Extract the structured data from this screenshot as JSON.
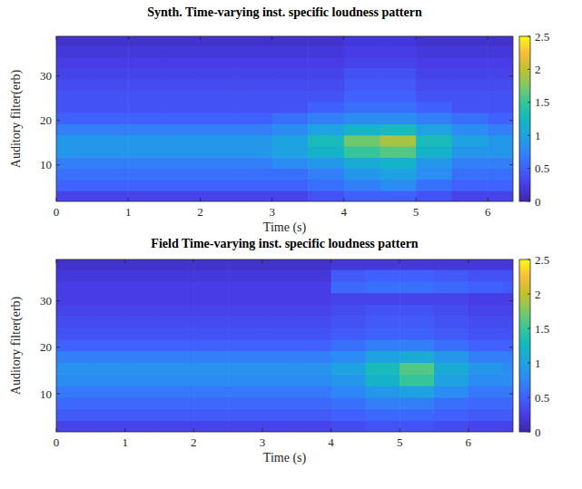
{
  "chart_data": [
    {
      "type": "heatmap",
      "title": "Synth. Time-varying inst. specific loudness pattern",
      "x_label": "Time (s)",
      "y_label": "Auditory filter(erb)",
      "xlim": [
        0,
        6.35
      ],
      "xticks": [
        0,
        1,
        2,
        3,
        4,
        5,
        6
      ],
      "ylim": [
        1.8,
        38.9
      ],
      "yticks": [
        10,
        20,
        30
      ],
      "x": [
        0.25,
        0.75,
        1.25,
        1.75,
        2.25,
        2.75,
        3.25,
        3.75,
        4.25,
        4.75,
        5.25,
        5.75,
        6.25
      ],
      "y": [
        3,
        5.5,
        8,
        10.5,
        13,
        15.5,
        18,
        20.5,
        23,
        25.5,
        28,
        30.5,
        33,
        35.5,
        38
      ],
      "values": [
        [
          0.3,
          0.3,
          0.3,
          0.3,
          0.3,
          0.3,
          0.3,
          0.4,
          0.5,
          0.5,
          0.4,
          0.3,
          0.3
        ],
        [
          0.5,
          0.5,
          0.5,
          0.5,
          0.5,
          0.5,
          0.5,
          0.6,
          0.7,
          0.8,
          0.6,
          0.5,
          0.5
        ],
        [
          0.6,
          0.6,
          0.6,
          0.6,
          0.6,
          0.6,
          0.6,
          0.7,
          0.9,
          1.0,
          0.8,
          0.6,
          0.6
        ],
        [
          0.7,
          0.7,
          0.7,
          0.7,
          0.7,
          0.7,
          0.8,
          0.9,
          1.1,
          1.2,
          0.9,
          0.7,
          0.7
        ],
        [
          0.9,
          0.9,
          0.9,
          0.9,
          0.9,
          0.9,
          1.0,
          1.2,
          1.5,
          1.6,
          1.2,
          0.9,
          0.9
        ],
        [
          0.9,
          0.9,
          0.9,
          0.9,
          0.9,
          0.9,
          1.0,
          1.3,
          1.7,
          1.9,
          1.3,
          1.0,
          0.9
        ],
        [
          0.7,
          0.7,
          0.7,
          0.7,
          0.7,
          0.7,
          0.8,
          1.0,
          1.2,
          1.3,
          1.0,
          0.8,
          0.7
        ],
        [
          0.5,
          0.5,
          0.5,
          0.5,
          0.5,
          0.5,
          0.6,
          0.7,
          0.8,
          0.8,
          0.7,
          0.6,
          0.5
        ],
        [
          0.4,
          0.4,
          0.4,
          0.4,
          0.4,
          0.4,
          0.4,
          0.5,
          0.6,
          0.6,
          0.5,
          0.4,
          0.4
        ],
        [
          0.4,
          0.4,
          0.4,
          0.4,
          0.4,
          0.4,
          0.4,
          0.4,
          0.5,
          0.5,
          0.4,
          0.4,
          0.4
        ],
        [
          0.35,
          0.35,
          0.35,
          0.35,
          0.35,
          0.35,
          0.35,
          0.35,
          0.45,
          0.45,
          0.35,
          0.35,
          0.35
        ],
        [
          0.3,
          0.3,
          0.3,
          0.3,
          0.3,
          0.3,
          0.3,
          0.3,
          0.4,
          0.4,
          0.3,
          0.3,
          0.3
        ],
        [
          0.25,
          0.25,
          0.25,
          0.25,
          0.25,
          0.25,
          0.25,
          0.25,
          0.3,
          0.3,
          0.25,
          0.25,
          0.25
        ],
        [
          0.2,
          0.2,
          0.2,
          0.2,
          0.2,
          0.2,
          0.2,
          0.2,
          0.25,
          0.25,
          0.2,
          0.2,
          0.2
        ],
        [
          0.15,
          0.15,
          0.15,
          0.15,
          0.15,
          0.15,
          0.15,
          0.15,
          0.2,
          0.2,
          0.15,
          0.15,
          0.15
        ]
      ],
      "colorbar": {
        "range": [
          0,
          2.5
        ],
        "ticks": [
          0,
          0.5,
          1,
          1.5,
          2,
          2.5
        ]
      }
    },
    {
      "type": "heatmap",
      "title": "Field Time-varying inst. specific loudness pattern",
      "x_label": "Time (s)",
      "y_label": "Auditory filter(erb)",
      "xlim": [
        0,
        6.65
      ],
      "xticks": [
        0,
        1,
        2,
        3,
        4,
        5,
        6
      ],
      "ylim": [
        1.8,
        38.9
      ],
      "yticks": [
        10,
        20,
        30
      ],
      "x": [
        0.25,
        0.75,
        1.25,
        1.75,
        2.25,
        2.75,
        3.25,
        3.75,
        4.25,
        4.75,
        5.25,
        5.75,
        6.25,
        6.75
      ],
      "y": [
        3,
        5.5,
        8,
        10.5,
        13,
        15.5,
        18,
        20.5,
        23,
        25.5,
        28,
        30.5,
        33,
        35.5,
        38
      ],
      "values": [
        [
          0.3,
          0.3,
          0.3,
          0.3,
          0.3,
          0.3,
          0.3,
          0.3,
          0.35,
          0.4,
          0.4,
          0.35,
          0.3,
          0.3
        ],
        [
          0.45,
          0.45,
          0.45,
          0.45,
          0.45,
          0.45,
          0.45,
          0.45,
          0.5,
          0.55,
          0.55,
          0.5,
          0.45,
          0.45
        ],
        [
          0.55,
          0.55,
          0.55,
          0.55,
          0.55,
          0.55,
          0.55,
          0.55,
          0.6,
          0.7,
          0.7,
          0.6,
          0.55,
          0.55
        ],
        [
          0.65,
          0.65,
          0.65,
          0.65,
          0.65,
          0.65,
          0.65,
          0.65,
          0.75,
          0.9,
          1.0,
          0.8,
          0.65,
          0.65
        ],
        [
          0.8,
          0.8,
          0.8,
          0.8,
          0.8,
          0.8,
          0.8,
          0.8,
          0.9,
          1.2,
          1.5,
          1.0,
          0.8,
          0.8
        ],
        [
          0.85,
          0.85,
          0.85,
          0.85,
          0.85,
          0.85,
          0.85,
          0.85,
          1.0,
          1.3,
          1.6,
          1.1,
          0.9,
          0.8
        ],
        [
          0.7,
          0.7,
          0.7,
          0.7,
          0.7,
          0.7,
          0.7,
          0.7,
          0.8,
          1.0,
          1.1,
          0.9,
          0.7,
          0.7
        ],
        [
          0.5,
          0.5,
          0.5,
          0.5,
          0.5,
          0.5,
          0.5,
          0.5,
          0.6,
          0.7,
          0.7,
          0.6,
          0.5,
          0.5
        ],
        [
          0.4,
          0.4,
          0.4,
          0.4,
          0.4,
          0.4,
          0.4,
          0.4,
          0.45,
          0.5,
          0.5,
          0.45,
          0.4,
          0.4
        ],
        [
          0.35,
          0.35,
          0.35,
          0.35,
          0.35,
          0.35,
          0.35,
          0.35,
          0.4,
          0.45,
          0.45,
          0.4,
          0.35,
          0.35
        ],
        [
          0.3,
          0.3,
          0.3,
          0.3,
          0.3,
          0.3,
          0.3,
          0.3,
          0.35,
          0.4,
          0.4,
          0.35,
          0.3,
          0.3
        ],
        [
          0.25,
          0.25,
          0.25,
          0.25,
          0.25,
          0.25,
          0.25,
          0.25,
          0.3,
          0.3,
          0.3,
          0.3,
          0.25,
          0.25
        ],
        [
          0.25,
          0.25,
          0.25,
          0.25,
          0.25,
          0.25,
          0.25,
          0.25,
          0.55,
          0.6,
          0.6,
          0.55,
          0.5,
          0.45
        ],
        [
          0.2,
          0.2,
          0.2,
          0.2,
          0.2,
          0.2,
          0.2,
          0.2,
          0.45,
          0.5,
          0.5,
          0.45,
          0.4,
          0.4
        ],
        [
          0.15,
          0.15,
          0.15,
          0.15,
          0.15,
          0.15,
          0.15,
          0.15,
          0.2,
          0.2,
          0.2,
          0.2,
          0.2,
          0.2
        ]
      ],
      "colorbar": {
        "range": [
          0,
          2.5
        ],
        "ticks": [
          0,
          0.5,
          1,
          1.5,
          2,
          2.5
        ]
      }
    }
  ]
}
